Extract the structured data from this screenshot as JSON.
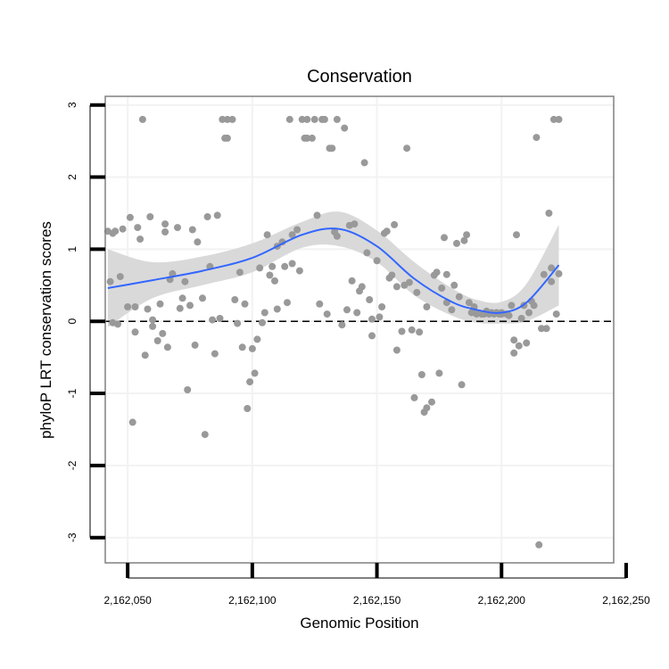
{
  "chart_data": {
    "type": "scatter",
    "title": "Conservation",
    "xlabel": "Genomic Position",
    "ylabel": "phyloP LRT conservation scores",
    "xlim": [
      2162041,
      2162245
    ],
    "ylim": [
      -3.35,
      3.12
    ],
    "xticks": [
      2162050,
      2162100,
      2162150,
      2162200,
      2162250
    ],
    "xtick_labels": [
      "2,162,050",
      "2,162,100",
      "2,162,150",
      "2,162,200",
      "2,162,250"
    ],
    "yticks": [
      3,
      2,
      1,
      0,
      -1,
      -2,
      -3
    ],
    "ytick_labels": [
      "3",
      "2",
      "1",
      "0",
      "-1",
      "-2",
      "-3"
    ],
    "reference_line": {
      "y": 0,
      "style": "dashed"
    },
    "grid": true,
    "colors": {
      "points": "#999999",
      "smooth": "#3366ff",
      "ribbon": "#d9d9d9",
      "frame": "#808080",
      "grid": "#f2f2f2",
      "reference": "#000000"
    },
    "series": [
      {
        "name": "phyloP scores",
        "points": [
          [
            2162042,
            1.25
          ],
          [
            2162043,
            0.55
          ],
          [
            2162044,
            1.22
          ],
          [
            2162044,
            -0.02
          ],
          [
            2162045,
            1.25
          ],
          [
            2162046,
            -0.04
          ],
          [
            2162047,
            0.62
          ],
          [
            2162048,
            1.28
          ],
          [
            2162050,
            0.2
          ],
          [
            2162051,
            1.44
          ],
          [
            2162052,
            -1.4
          ],
          [
            2162053,
            0.2
          ],
          [
            2162053,
            -0.15
          ],
          [
            2162054,
            1.3
          ],
          [
            2162055,
            1.14
          ],
          [
            2162056,
            2.8
          ],
          [
            2162057,
            -0.47
          ],
          [
            2162058,
            0.17
          ],
          [
            2162059,
            1.45
          ],
          [
            2162060,
            -0.07
          ],
          [
            2162060,
            0.02
          ],
          [
            2162062,
            -0.27
          ],
          [
            2162063,
            0.24
          ],
          [
            2162064,
            -0.17
          ],
          [
            2162065,
            1.24
          ],
          [
            2162065,
            1.35
          ],
          [
            2162066,
            -0.36
          ],
          [
            2162067,
            0.58
          ],
          [
            2162068,
            0.66
          ],
          [
            2162070,
            1.3
          ],
          [
            2162071,
            0.18
          ],
          [
            2162072,
            0.32
          ],
          [
            2162073,
            0.55
          ],
          [
            2162074,
            -0.95
          ],
          [
            2162075,
            0.22
          ],
          [
            2162076,
            1.27
          ],
          [
            2162077,
            -0.33
          ],
          [
            2162078,
            1.1
          ],
          [
            2162080,
            0.32
          ],
          [
            2162081,
            -1.57
          ],
          [
            2162082,
            1.45
          ],
          [
            2162083,
            0.76
          ],
          [
            2162084,
            0.02
          ],
          [
            2162085,
            -0.45
          ],
          [
            2162086,
            1.47
          ],
          [
            2162087,
            0.04
          ],
          [
            2162088,
            2.8
          ],
          [
            2162089,
            2.54
          ],
          [
            2162090,
            2.54
          ],
          [
            2162090,
            2.8
          ],
          [
            2162092,
            2.8
          ],
          [
            2162093,
            0.3
          ],
          [
            2162094,
            -0.03
          ],
          [
            2162095,
            0.68
          ],
          [
            2162096,
            -0.36
          ],
          [
            2162097,
            0.24
          ],
          [
            2162098,
            -1.21
          ],
          [
            2162099,
            -0.84
          ],
          [
            2162100,
            -0.38
          ],
          [
            2162101,
            -0.72
          ],
          [
            2162102,
            -0.25
          ],
          [
            2162103,
            0.74
          ],
          [
            2162104,
            -0.02
          ],
          [
            2162105,
            0.12
          ],
          [
            2162106,
            1.2
          ],
          [
            2162107,
            0.64
          ],
          [
            2162108,
            0.76
          ],
          [
            2162109,
            0.56
          ],
          [
            2162110,
            0.17
          ],
          [
            2162110,
            1.04
          ],
          [
            2162112,
            1.1
          ],
          [
            2162113,
            0.76
          ],
          [
            2162114,
            0.26
          ],
          [
            2162115,
            2.8
          ],
          [
            2162116,
            0.8
          ],
          [
            2162116,
            1.2
          ],
          [
            2162118,
            1.27
          ],
          [
            2162119,
            0.7
          ],
          [
            2162120,
            2.8
          ],
          [
            2162121,
            2.54
          ],
          [
            2162122,
            2.54
          ],
          [
            2162122,
            2.8
          ],
          [
            2162124,
            2.54
          ],
          [
            2162125,
            2.8
          ],
          [
            2162126,
            1.47
          ],
          [
            2162127,
            0.24
          ],
          [
            2162128,
            2.8
          ],
          [
            2162129,
            2.8
          ],
          [
            2162130,
            0.1
          ],
          [
            2162131,
            2.4
          ],
          [
            2162132,
            2.4
          ],
          [
            2162133,
            1.24
          ],
          [
            2162134,
            2.8
          ],
          [
            2162134,
            1.18
          ],
          [
            2162136,
            -0.05
          ],
          [
            2162137,
            2.68
          ],
          [
            2162138,
            0.16
          ],
          [
            2162139,
            1.33
          ],
          [
            2162140,
            0.56
          ],
          [
            2162141,
            1.35
          ],
          [
            2162142,
            0.12
          ],
          [
            2162143,
            0.42
          ],
          [
            2162144,
            0.48
          ],
          [
            2162145,
            2.2
          ],
          [
            2162146,
            0.95
          ],
          [
            2162147,
            0.3
          ],
          [
            2162148,
            -0.2
          ],
          [
            2162148,
            0.03
          ],
          [
            2162150,
            0.84
          ],
          [
            2162151,
            0.06
          ],
          [
            2162152,
            0.2
          ],
          [
            2162153,
            1.22
          ],
          [
            2162154,
            1.25
          ],
          [
            2162155,
            0.6
          ],
          [
            2162156,
            0.64
          ],
          [
            2162157,
            1.34
          ],
          [
            2162158,
            0.48
          ],
          [
            2162158,
            -0.4
          ],
          [
            2162160,
            -0.14
          ],
          [
            2162161,
            0.5
          ],
          [
            2162162,
            2.4
          ],
          [
            2162163,
            0.54
          ],
          [
            2162164,
            -0.12
          ],
          [
            2162165,
            -1.06
          ],
          [
            2162166,
            0.4
          ],
          [
            2162167,
            -0.15
          ],
          [
            2162168,
            -0.74
          ],
          [
            2162169,
            -1.26
          ],
          [
            2162170,
            0.2
          ],
          [
            2162170,
            -1.2
          ],
          [
            2162172,
            -1.12
          ],
          [
            2162173,
            0.64
          ],
          [
            2162174,
            0.68
          ],
          [
            2162175,
            -0.72
          ],
          [
            2162176,
            0.46
          ],
          [
            2162177,
            1.16
          ],
          [
            2162178,
            0.26
          ],
          [
            2162178,
            0.65
          ],
          [
            2162180,
            0.16
          ],
          [
            2162181,
            0.5
          ],
          [
            2162182,
            1.08
          ],
          [
            2162183,
            0.34
          ],
          [
            2162184,
            -0.88
          ],
          [
            2162185,
            1.12
          ],
          [
            2162186,
            1.2
          ],
          [
            2162187,
            0.26
          ],
          [
            2162188,
            0.12
          ],
          [
            2162189,
            0.2
          ],
          [
            2162190,
            0.1
          ],
          [
            2162190,
            0.12
          ],
          [
            2162192,
            0.1
          ],
          [
            2162193,
            0.1
          ],
          [
            2162194,
            0.14
          ],
          [
            2162195,
            0.1
          ],
          [
            2162196,
            0.12
          ],
          [
            2162197,
            0.1
          ],
          [
            2162198,
            0.12
          ],
          [
            2162199,
            0.1
          ],
          [
            2162200,
            0.1
          ],
          [
            2162200,
            0.12
          ],
          [
            2162202,
            0.1
          ],
          [
            2162203,
            0.08
          ],
          [
            2162204,
            0.22
          ],
          [
            2162205,
            -0.26
          ],
          [
            2162205,
            -0.44
          ],
          [
            2162206,
            1.2
          ],
          [
            2162207,
            -0.34
          ],
          [
            2162208,
            0.04
          ],
          [
            2162209,
            0.22
          ],
          [
            2162210,
            -0.3
          ],
          [
            2162211,
            0.12
          ],
          [
            2162212,
            0.28
          ],
          [
            2162213,
            0.22
          ],
          [
            2162214,
            2.55
          ],
          [
            2162215,
            -3.1
          ],
          [
            2162216,
            -0.1
          ],
          [
            2162217,
            0.65
          ],
          [
            2162218,
            -0.1
          ],
          [
            2162219,
            1.5
          ],
          [
            2162220,
            0.74
          ],
          [
            2162220,
            0.55
          ],
          [
            2162221,
            2.8
          ],
          [
            2162222,
            0.1
          ],
          [
            2162223,
            2.8
          ],
          [
            2162223,
            0.66
          ]
        ]
      },
      {
        "name": "smooth",
        "x": [
          2162042,
          2162060,
          2162080,
          2162100,
          2162120,
          2162135,
          2162150,
          2162165,
          2162180,
          2162190,
          2162200,
          2162210,
          2162223
        ],
        "y": [
          0.46,
          0.57,
          0.7,
          0.88,
          1.2,
          1.28,
          1.04,
          0.59,
          0.27,
          0.16,
          0.12,
          0.26,
          0.78
        ],
        "ci_upper": [
          1.0,
          0.82,
          0.9,
          1.08,
          1.38,
          1.52,
          1.26,
          0.82,
          0.46,
          0.3,
          0.27,
          0.52,
          1.34
        ],
        "ci_lower": [
          -0.08,
          0.32,
          0.5,
          0.68,
          1.02,
          1.04,
          0.82,
          0.36,
          0.08,
          -0.02,
          -0.03,
          0.0,
          0.22
        ]
      }
    ]
  }
}
